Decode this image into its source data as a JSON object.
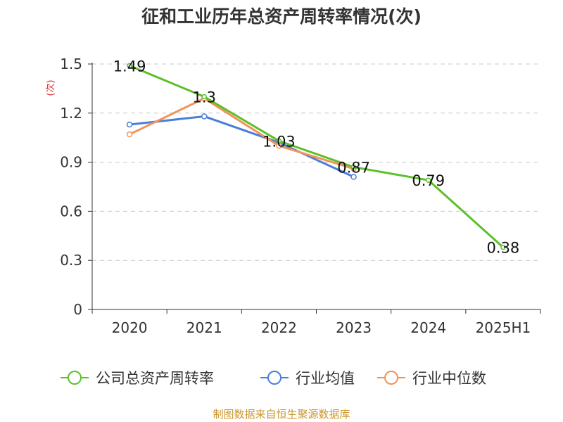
{
  "page": {
    "source": "制图数据来自恒生聚源数据库"
  },
  "chart_data": {
    "type": "line",
    "title": "征和工业历年总资产周转率情况(次)",
    "ylabel": "(次)",
    "xlabel": "",
    "categories": [
      "2020",
      "2021",
      "2022",
      "2023",
      "2024",
      "2025H1"
    ],
    "ylim": [
      0,
      1.5
    ],
    "yticks": [
      "0",
      "0.3",
      "0.6",
      "0.9",
      "1.2",
      "1.5"
    ],
    "grid": true,
    "legend_position": "bottom",
    "series": [
      {
        "name": "公司总资产周转率",
        "color": "#5cc02a",
        "values": [
          1.49,
          1.3,
          1.03,
          0.87,
          0.79,
          0.38
        ],
        "labels": [
          "1.49",
          "1.3",
          "1.03",
          "0.87",
          "0.79",
          "0.38"
        ]
      },
      {
        "name": "行业均值",
        "color": "#4a7fd8",
        "values": [
          1.13,
          1.18,
          1.02,
          0.81,
          null,
          null
        ]
      },
      {
        "name": "行业中位数",
        "color": "#f39259",
        "values": [
          1.07,
          1.29,
          1.0,
          0.86,
          null,
          null
        ]
      }
    ]
  }
}
